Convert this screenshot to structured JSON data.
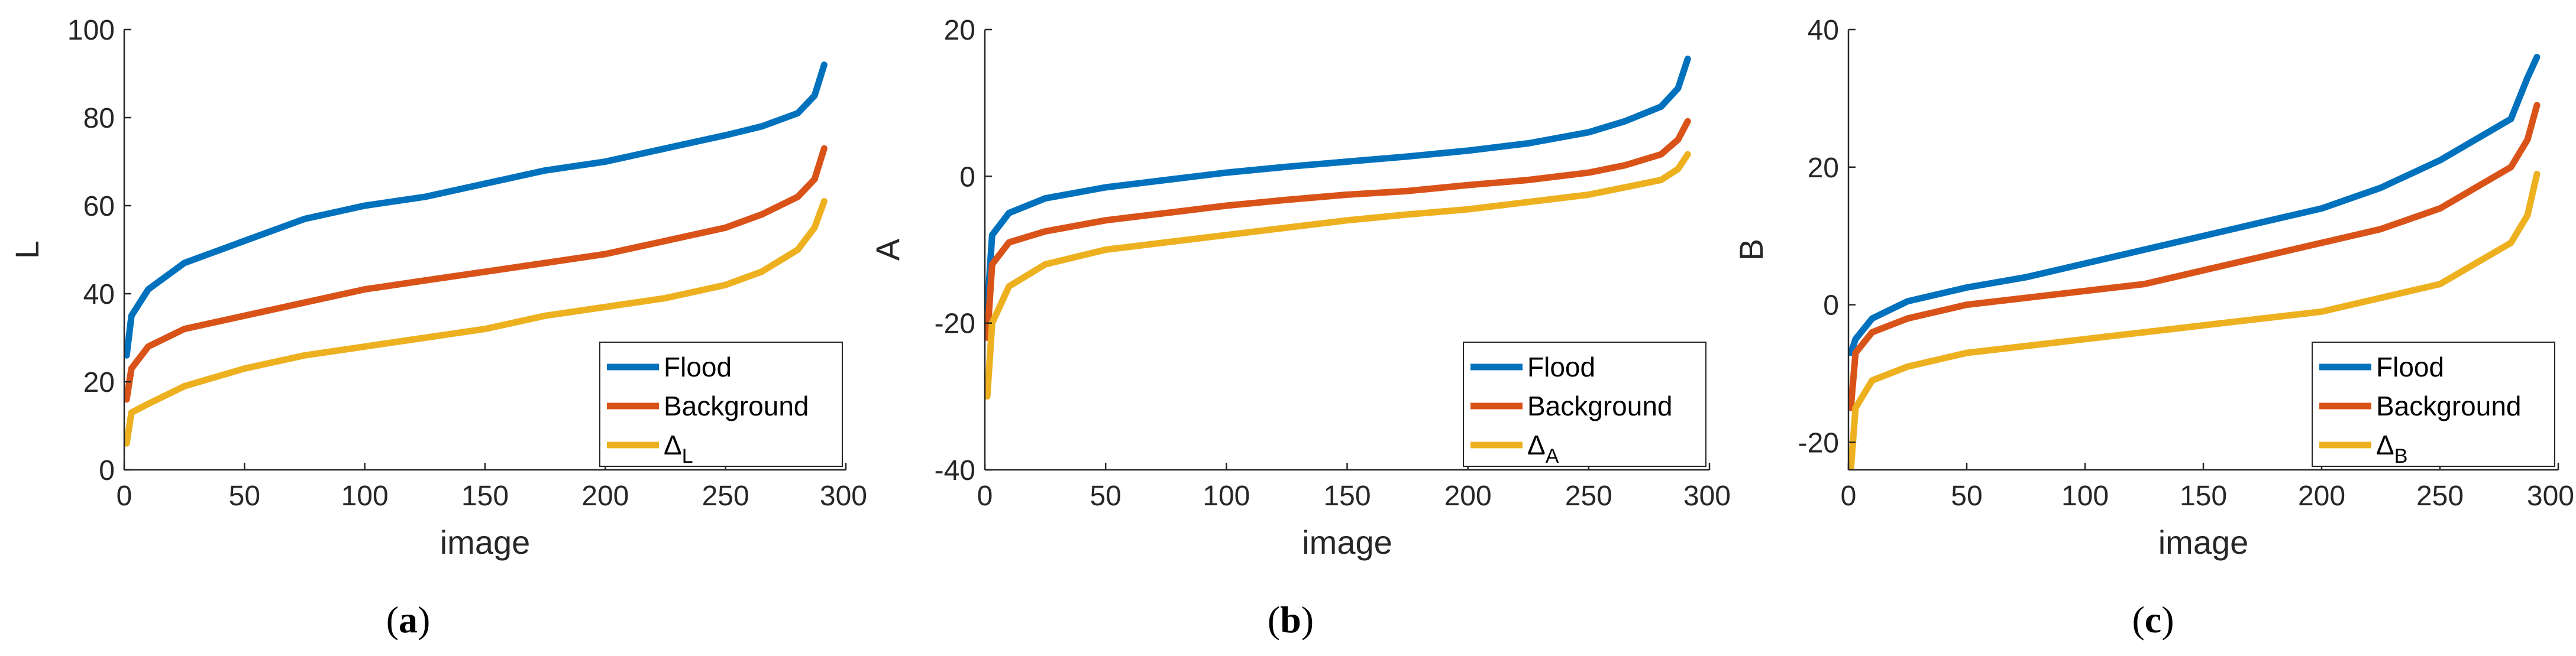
{
  "chart_data": [
    {
      "type": "line",
      "panel": "(a)",
      "caption": {
        "open": "(",
        "letter": "a",
        "close": ")"
      },
      "xlabel": "image",
      "ylabel": "L",
      "xlim": [
        0,
        300
      ],
      "ylim": [
        0,
        100
      ],
      "xticks": [
        0,
        50,
        100,
        150,
        200,
        250,
        300
      ],
      "xtick_labels": [
        "0",
        "50",
        "100",
        "150",
        "200",
        "250",
        "300"
      ],
      "yticks": [
        0,
        20,
        40,
        60,
        80,
        100
      ],
      "ytick_labels": [
        "0",
        "20",
        "40",
        "60",
        "80",
        "100"
      ],
      "grid": false,
      "legend_position": "bottom-right",
      "x": [
        1,
        3,
        10,
        25,
        50,
        75,
        100,
        125,
        150,
        175,
        200,
        225,
        250,
        265,
        280,
        287,
        291
      ],
      "series": [
        {
          "name": "Flood",
          "color": "#0072BD",
          "values": [
            26,
            35,
            41,
            47,
            52,
            57,
            60,
            62,
            65,
            68,
            70,
            73,
            76,
            78,
            81,
            85,
            92
          ]
        },
        {
          "name": "Background",
          "color": "#D95319",
          "values": [
            16,
            23,
            28,
            32,
            35,
            38,
            41,
            43,
            45,
            47,
            49,
            52,
            55,
            58,
            62,
            66,
            73
          ]
        },
        {
          "name": "Δ",
          "subscript": "L",
          "color": "#EDB120",
          "values": [
            6,
            13,
            15,
            19,
            23,
            26,
            28,
            30,
            32,
            35,
            37,
            39,
            42,
            45,
            50,
            55,
            61
          ]
        }
      ]
    },
    {
      "type": "line",
      "panel": "(b)",
      "caption": {
        "open": "(",
        "letter": "b",
        "close": ")"
      },
      "xlabel": "image",
      "ylabel": "A",
      "xlim": [
        0,
        300
      ],
      "ylim": [
        -40,
        20
      ],
      "xticks": [
        0,
        50,
        100,
        150,
        200,
        250,
        300
      ],
      "xtick_labels": [
        "0",
        "50",
        "100",
        "150",
        "200",
        "250",
        "300"
      ],
      "yticks": [
        -40,
        -20,
        0,
        20
      ],
      "ytick_labels": [
        "-40",
        "-20",
        "0",
        "20"
      ],
      "grid": false,
      "legend_position": "bottom-right",
      "x": [
        1,
        3,
        10,
        25,
        50,
        75,
        100,
        125,
        150,
        175,
        200,
        225,
        250,
        265,
        280,
        287,
        291
      ],
      "series": [
        {
          "name": "Flood",
          "color": "#0072BD",
          "values": [
            -18,
            -8,
            -5,
            -3,
            -1.5,
            -0.5,
            0.5,
            1.3,
            2,
            2.7,
            3.5,
            4.5,
            6,
            7.5,
            9.5,
            12,
            16
          ]
        },
        {
          "name": "Background",
          "color": "#D95319",
          "values": [
            -22,
            -12,
            -9,
            -7.5,
            -6,
            -5,
            -4,
            -3.2,
            -2.5,
            -2,
            -1.2,
            -0.5,
            0.5,
            1.5,
            3,
            5,
            7.5
          ]
        },
        {
          "name": "Δ",
          "subscript": "A",
          "color": "#EDB120",
          "values": [
            -30,
            -20,
            -15,
            -12,
            -10,
            -9,
            -8,
            -7,
            -6,
            -5.2,
            -4.5,
            -3.5,
            -2.5,
            -1.5,
            -0.5,
            1,
            3
          ]
        }
      ]
    },
    {
      "type": "line",
      "panel": "(c)",
      "caption": {
        "open": "(",
        "letter": "c",
        "close": ")"
      },
      "xlabel": "image",
      "ylabel": "B",
      "xlim": [
        0,
        300
      ],
      "ylim": [
        -24,
        40
      ],
      "xticks": [
        0,
        50,
        100,
        150,
        200,
        250,
        300
      ],
      "xtick_labels": [
        "0",
        "50",
        "100",
        "150",
        "200",
        "250",
        "300"
      ],
      "yticks": [
        -20,
        0,
        20,
        40
      ],
      "ytick_labels": [
        "-20",
        "0",
        "20",
        "40"
      ],
      "grid": false,
      "legend_position": "bottom-right",
      "x": [
        1,
        3,
        10,
        25,
        50,
        75,
        100,
        125,
        150,
        175,
        200,
        225,
        250,
        265,
        280,
        287,
        291
      ],
      "series": [
        {
          "name": "Flood",
          "color": "#0072BD",
          "values": [
            -7,
            -5,
            -2,
            0.5,
            2.5,
            4,
            6,
            8,
            10,
            12,
            14,
            17,
            21,
            24,
            27,
            33,
            36
          ]
        },
        {
          "name": "Background",
          "color": "#D95319",
          "values": [
            -15,
            -7,
            -4,
            -2,
            0,
            1,
            2,
            3,
            5,
            7,
            9,
            11,
            14,
            17,
            20,
            24,
            29
          ]
        },
        {
          "name": "Δ",
          "subscript": "B",
          "color": "#EDB120",
          "values": [
            -24,
            -15,
            -11,
            -9,
            -7,
            -6,
            -5,
            -4,
            -3,
            -2,
            -1,
            1,
            3,
            6,
            9,
            13,
            19
          ]
        }
      ]
    }
  ]
}
